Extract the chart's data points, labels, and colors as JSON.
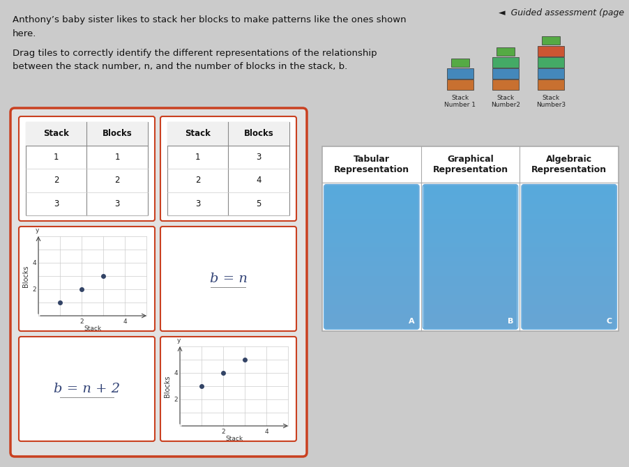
{
  "bg_color": "#cbcbcb",
  "title_text": "◄  Guided assessment (page",
  "intro_text1": "Anthony’s baby sister likes to stack her blocks to make patterns like the ones shown",
  "intro_text2": "here.",
  "drag_text1": "Drag tiles to correctly identify the different representations of the relationship",
  "drag_text2": "between the stack number, n, and the number of blocks in the stack, b.",
  "table1": {
    "headers": [
      "Stack",
      "Blocks"
    ],
    "rows": [
      [
        1,
        1
      ],
      [
        2,
        2
      ],
      [
        3,
        3
      ]
    ]
  },
  "table2": {
    "headers": [
      "Stack",
      "Blocks"
    ],
    "rows": [
      [
        1,
        3
      ],
      [
        2,
        4
      ],
      [
        3,
        5
      ]
    ]
  },
  "graph1": {
    "points": [
      [
        1,
        1
      ],
      [
        2,
        2
      ],
      [
        3,
        3
      ]
    ],
    "xlabel": "Stack",
    "ylabel": "Blocks",
    "xlim": [
      0,
      5
    ],
    "ylim": [
      0,
      6
    ],
    "yticks": [
      2,
      4
    ],
    "xticks": [
      2,
      4
    ]
  },
  "graph2": {
    "points": [
      [
        1,
        3
      ],
      [
        2,
        4
      ],
      [
        3,
        5
      ]
    ],
    "xlabel": "Stack",
    "ylabel": "Blocks",
    "xlim": [
      0,
      5
    ],
    "ylim": [
      0,
      6
    ],
    "yticks": [
      2,
      4
    ],
    "xticks": [
      2,
      4
    ]
  },
  "eq1": "b = n",
  "eq2": "b = n + 2",
  "rep_headers": [
    "Tabular\nRepresentation",
    "Graphical\nRepresentation",
    "Algebraic\nRepresentation"
  ],
  "rep_labels": [
    "A",
    "B",
    "C"
  ],
  "tile_border_color": "#c94020",
  "panel_bg": "#e2e2e2",
  "stack_captions": [
    "Stack\nNumber 1",
    "Stack\nNumber2",
    "Stack\nNumber3"
  ],
  "blue_top": "#7ac4e8",
  "blue_bot": "#4a90c8"
}
